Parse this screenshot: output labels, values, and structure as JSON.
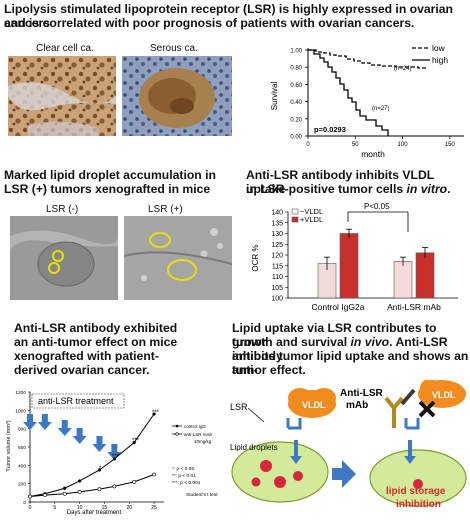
{
  "header": {
    "line1": "Lipolysis stimulated lipoprotein receptor (LSR) is highly expressed in ovarian cancers",
    "line2": "and is correlated with poor prognosis of patients with ovarian cancers."
  },
  "histology": {
    "label_clear": "Clear cell ca.",
    "label_serous": "Serous ca."
  },
  "survival": {
    "ylabel": "Survival",
    "xlabel": "month",
    "pvalue": "p=0.0293",
    "n_low": "(n=24)",
    "n_high": "(n=27)",
    "legend_low": "low",
    "legend_high": "high",
    "yticks": [
      "1.00",
      "0.80",
      "0.60",
      "0.40",
      "0.20",
      "0.00"
    ],
    "xticks": [
      "0",
      "50",
      "100",
      "150"
    ]
  },
  "xenograft": {
    "title_line1": "Marked lipid droplet accumulation in",
    "title_line2": "LSR (+) tumors xenografted in mice",
    "label_neg": "LSR (-)",
    "label_pos": "LSR (+)"
  },
  "vldl": {
    "title_line1": "Anti-LSR antibody inhibits VLDL uptake",
    "title_line2_a": "in LSR-positive tumor cells ",
    "title_line2_b": "in vitro",
    "title_line2_c": ".",
    "pvalue": "P<0.05",
    "legend_minus": "−VLDL",
    "legend_plus": "+VLDL",
    "ylabel": "OCR %",
    "yticks": [
      "140",
      "135",
      "130",
      "125",
      "120",
      "115",
      "110",
      "105",
      "100"
    ]
  },
  "chart_data": {
    "type": "bar",
    "categories": [
      "Control IgG2a",
      "Anti-LSR mAb"
    ],
    "series": [
      {
        "name": "−VLDL",
        "values": [
          116,
          117
        ],
        "errors": [
          3,
          2
        ]
      },
      {
        "name": "+VLDL",
        "values": [
          130,
          121
        ],
        "errors": [
          2,
          2.5
        ]
      }
    ],
    "ylabel": "OCR %",
    "ylim": [
      100,
      140
    ]
  },
  "antitumor": {
    "title_line1": "Anti-LSR antibody exhibited",
    "title_line2": "an anti-tumor effect on mice",
    "title_line3": "xenografted with patient-",
    "title_line4": "derived ovarian cancer.",
    "treatment_label": "anti-LSR treatment",
    "ylabel": "Tumor volume (mm³)",
    "xlabel": "Days after treatment",
    "legend_control": "control IgG",
    "legend_anti": "anti-LSR mAb",
    "legend_dose": "10mg/kg",
    "sig1": "*:    p < 0.05",
    "sig2": "**:   p < 0.01",
    "sig3": "***:  p < 0.001",
    "test": "Student's t test",
    "yticks": [
      "1200",
      "1000",
      "800",
      "600",
      "400",
      "200",
      "0"
    ],
    "xticks": [
      "0",
      "5",
      "10",
      "15",
      "20",
      "25"
    ],
    "control_values": [
      {
        "x": 0,
        "y": 60
      },
      {
        "x": 3,
        "y": 90
      },
      {
        "x": 7,
        "y": 150
      },
      {
        "x": 10,
        "y": 230
      },
      {
        "x": 14,
        "y": 350
      },
      {
        "x": 17,
        "y": 470
      },
      {
        "x": 21,
        "y": 650
      },
      {
        "x": 25,
        "y": 960
      }
    ],
    "anti_values": [
      {
        "x": 0,
        "y": 60
      },
      {
        "x": 3,
        "y": 75
      },
      {
        "x": 7,
        "y": 90
      },
      {
        "x": 10,
        "y": 110
      },
      {
        "x": 14,
        "y": 140
      },
      {
        "x": 17,
        "y": 170
      },
      {
        "x": 21,
        "y": 220
      },
      {
        "x": 25,
        "y": 300
      }
    ]
  },
  "mechanism": {
    "title_line1": "Lipid uptake via LSR contributes to tumor",
    "title_line2_a": "growth and survival ",
    "title_line2_b": "in vivo",
    "title_line2_c": ". Anti-LSR antibody",
    "title_line3": "inhibits tumor lipid uptake and shows an anti-",
    "title_line4": "tumor effect.",
    "lsr_label": "LSR",
    "vldl_label": "VLDL",
    "lipid_label": "Lipid droplets",
    "antibody_line1": "Anti-LSR",
    "antibody_line2": "mAb",
    "inhibition_line1": "lipid storage",
    "inhibition_line2": "inhibition"
  },
  "colors": {
    "orange": "#f28c1e",
    "blue_arrow": "#3d78c4",
    "cell_green": "#d3ea9a",
    "droplet_red": "#d8263a",
    "inhibition_red": "#e0262b",
    "bar_dark": "#c9302c",
    "bar_light": "#f5dada"
  }
}
